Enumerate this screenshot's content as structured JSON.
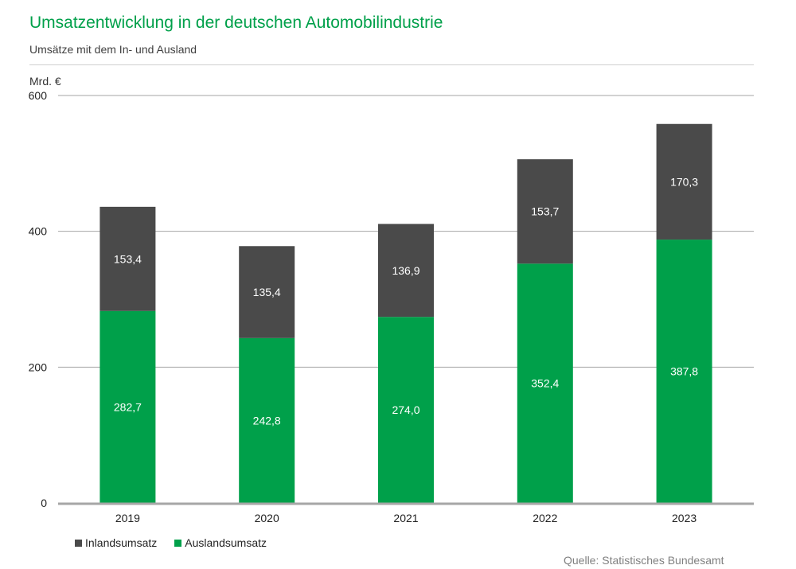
{
  "header": {
    "title": "Umsatzentwicklung in der deutschen Automobilindustrie",
    "subtitle": "Umsätze mit dem In- und Ausland"
  },
  "unit_label": "Mrd. €",
  "source": "Quelle: Statistisches Bundesamt",
  "colors": {
    "inland": "#4a4a4a",
    "ausland": "#00a04a",
    "grid": "#a6a6a6",
    "axis": "#a6a6a6"
  },
  "chart_data": {
    "type": "bar",
    "stacked": true,
    "title": "Umsatzentwicklung in der deutschen Automobilindustrie",
    "ylabel": "Mrd. €",
    "ylim": [
      0,
      600
    ],
    "yticks": [
      "0",
      "200",
      "400",
      "600"
    ],
    "ytick_values": [
      0,
      200,
      400,
      600
    ],
    "categories": [
      "2019",
      "2020",
      "2021",
      "2022",
      "2023"
    ],
    "series": [
      {
        "name": "Auslandsumsatz",
        "values": [
          282.7,
          242.8,
          274.0,
          352.4,
          387.8
        ],
        "labels": [
          "282,7",
          "242,8",
          "274,0",
          "352,4",
          "387,8"
        ],
        "color": "#00a04a"
      },
      {
        "name": "Inlandsumsatz",
        "values": [
          153.4,
          135.4,
          136.9,
          153.7,
          170.3
        ],
        "labels": [
          "153,4",
          "135,4",
          "136,9",
          "153,7",
          "170,3"
        ],
        "color": "#4a4a4a"
      }
    ],
    "legend": [
      "Inlandsumsatz",
      "Auslandsumsatz"
    ],
    "legend_position": "bottom-left"
  }
}
